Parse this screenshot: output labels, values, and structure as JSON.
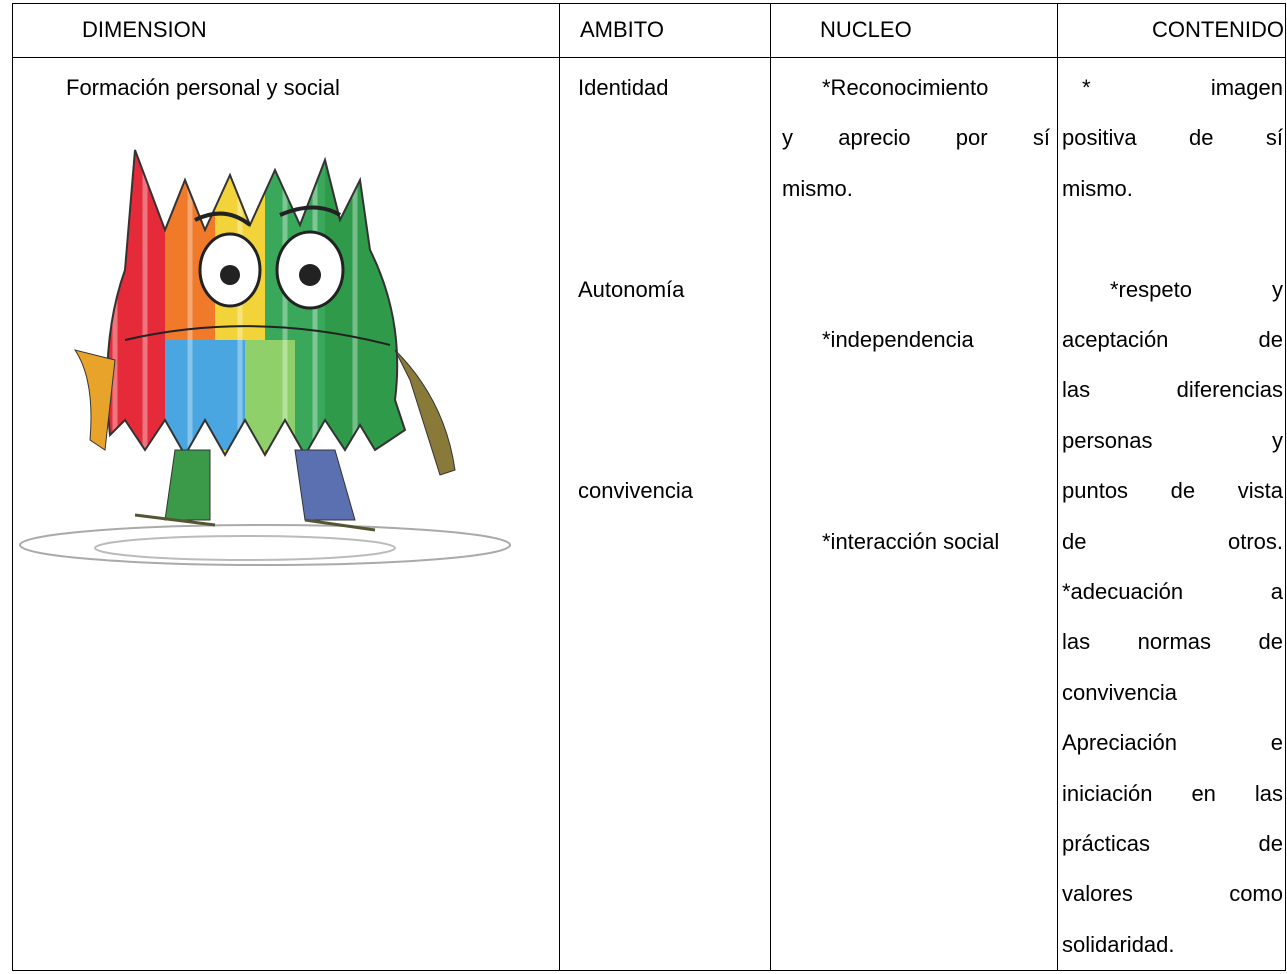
{
  "table": {
    "headers": [
      "DIMENSION",
      "AMBITO",
      "NUCLEO",
      "CONTENIDO"
    ],
    "dimension": "Formación personal y social",
    "ambito": [
      "Identidad",
      "Autonomía",
      "convivencia"
    ],
    "nucleo": [
      [
        "*Reconocimiento",
        "y aprecio por sí",
        "mismo."
      ],
      [
        "*independencia"
      ],
      [
        "*interacción social"
      ]
    ],
    "contenido": [
      [
        "* imagen",
        "positiva de sí",
        "mismo."
      ],
      [
        "*respeto y",
        "aceptación de",
        "las diferencias",
        "personas y",
        "puntos de vista",
        "de otros.",
        "*adecuación a",
        "las normas de",
        "convivencia",
        "Apreciación e",
        "iniciación en las",
        "prácticas de",
        "valores como",
        "solidaridad."
      ]
    ]
  }
}
